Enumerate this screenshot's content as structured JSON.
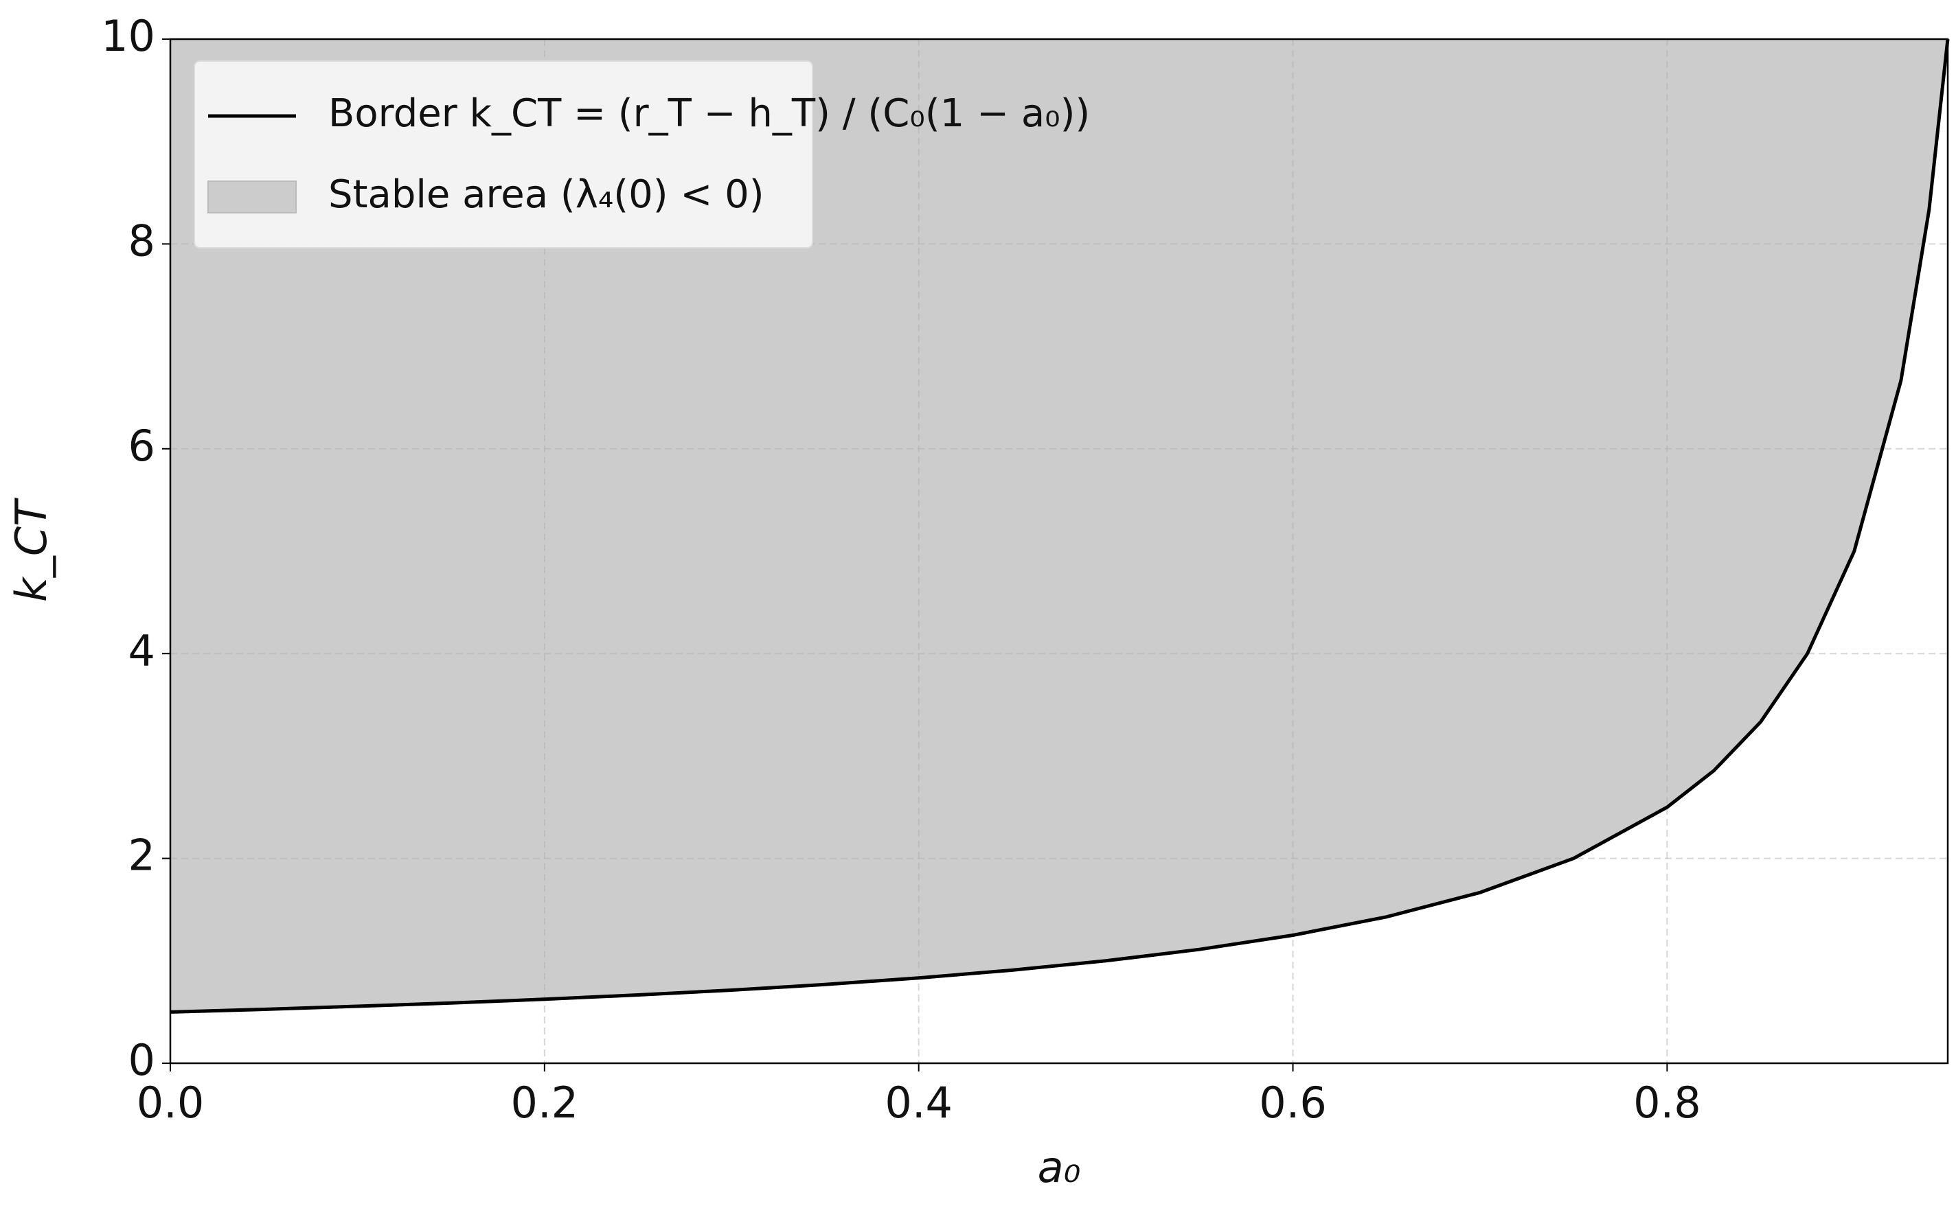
{
  "chart_data": {
    "type": "line",
    "xlabel": "a₀",
    "ylabel": "k_CT",
    "x": [
      0,
      0.05,
      0.1,
      0.15,
      0.2,
      0.25,
      0.3,
      0.35,
      0.4,
      0.45,
      0.5,
      0.55,
      0.6,
      0.65,
      0.7,
      0.75,
      0.8,
      0.825,
      0.85,
      0.875,
      0.9,
      0.925,
      0.94,
      0.95
    ],
    "series": [
      {
        "name": "Border k_CT = (r_T − h_T) / (C₀(1 − a₀))",
        "color": "#000000",
        "values": [
          0.5,
          0.526,
          0.556,
          0.588,
          0.625,
          0.667,
          0.714,
          0.769,
          0.833,
          0.909,
          1,
          1.111,
          1.25,
          1.429,
          1.667,
          2,
          2.5,
          2.857,
          3.333,
          4,
          5,
          6.667,
          8.333,
          10
        ]
      }
    ],
    "fill": {
      "label": "Stable area (λ₄(0) < 0)",
      "color": "#cccccc",
      "to": "top"
    },
    "xlim": [
      0,
      0.95
    ],
    "ylim": [
      0,
      10
    ],
    "xticks": [
      {
        "value": 0,
        "label": "0.0"
      },
      0.2,
      0.4,
      0.6,
      0.8
    ],
    "yticks": [
      0,
      2,
      4,
      6,
      8,
      10
    ],
    "grid": true,
    "legend": "upper left"
  }
}
